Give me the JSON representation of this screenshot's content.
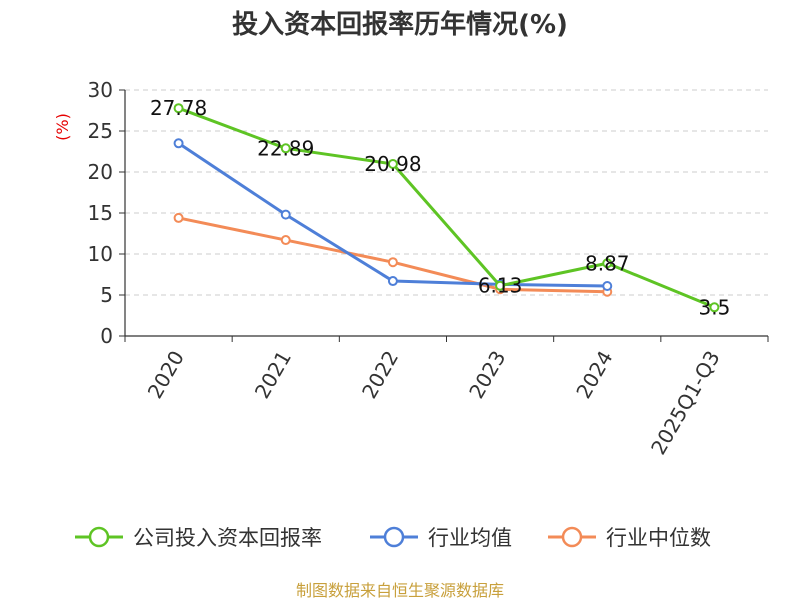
{
  "chart_data": {
    "type": "line",
    "title": "投入资本回报率历年情况(%)",
    "ylabel": "(%)",
    "xlabel": "",
    "categories": [
      "2020",
      "2021",
      "2022",
      "2023",
      "2024",
      "2025Q1-Q3"
    ],
    "yticks": [
      "0",
      "5",
      "10",
      "15",
      "20",
      "25",
      "30"
    ],
    "ylim": [
      0,
      30
    ],
    "grid": true,
    "legend_position": "bottom",
    "series": [
      {
        "name": "公司投入资本回报率",
        "color": "#5ec424",
        "values": [
          27.78,
          22.89,
          20.98,
          6.13,
          8.87,
          3.5
        ],
        "labels": [
          "27.78",
          "22.89",
          "20.98",
          "6.13",
          "8.87",
          "3.5"
        ]
      },
      {
        "name": "行业均值",
        "color": "#4e7fd8",
        "values": [
          23.5,
          14.8,
          6.7,
          6.3,
          6.1,
          null
        ]
      },
      {
        "name": "行业中位数",
        "color": "#f38b57",
        "values": [
          14.4,
          11.7,
          9.0,
          5.7,
          5.4,
          null
        ]
      }
    ]
  },
  "source": "制图数据来自恒生聚源数据库"
}
